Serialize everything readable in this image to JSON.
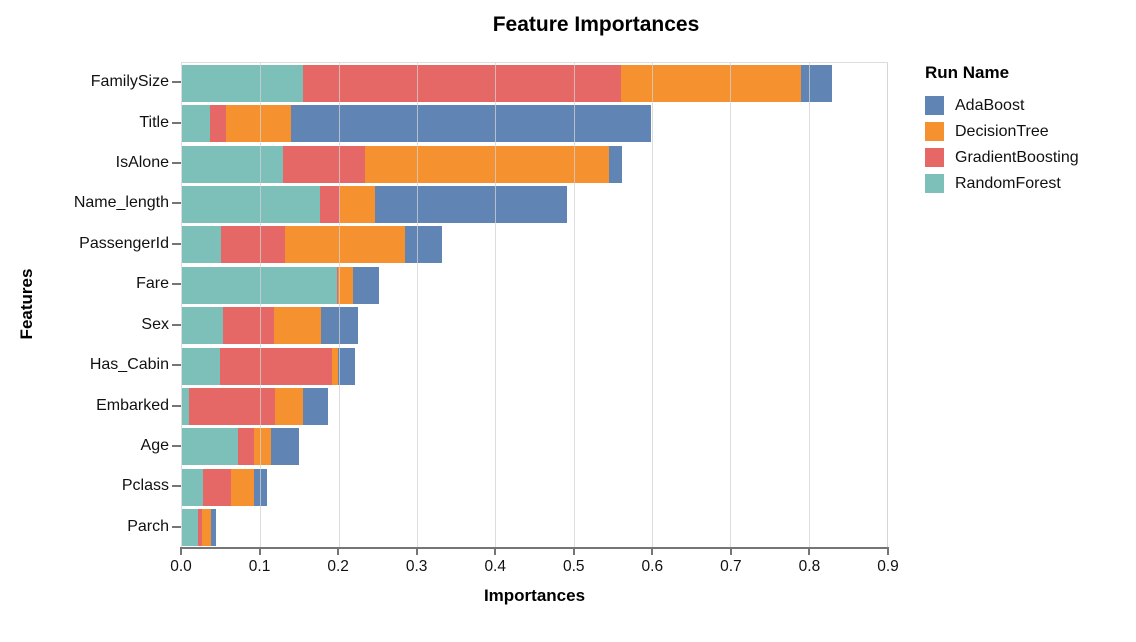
{
  "chart_data": {
    "type": "bar",
    "orientation": "horizontal",
    "stacked": true,
    "title": "Feature Importances",
    "xlabel": "Importances",
    "ylabel": "Features",
    "xlim": [
      0.0,
      0.9
    ],
    "x_ticks": [
      0.0,
      0.1,
      0.2,
      0.3,
      0.4,
      0.5,
      0.6,
      0.7,
      0.8,
      0.9
    ],
    "grid": true,
    "categories": [
      "FamilySize",
      "Title",
      "IsAlone",
      "Name_length",
      "PassengerId",
      "Fare",
      "Sex",
      "Has_Cabin",
      "Embarked",
      "Age",
      "Pclass",
      "Parch"
    ],
    "series": [
      {
        "name": "AdaBoost",
        "color": "#6084b4",
        "values": [
          0.04,
          0.46,
          0.017,
          0.246,
          0.047,
          0.034,
          0.047,
          0.022,
          0.032,
          0.036,
          0.017,
          0.007
        ]
      },
      {
        "name": "DecisionTree",
        "color": "#f5922f",
        "values": [
          0.23,
          0.083,
          0.312,
          0.044,
          0.154,
          0.019,
          0.06,
          0.007,
          0.035,
          0.022,
          0.03,
          0.012
        ]
      },
      {
        "name": "GradientBoosting",
        "color": "#e56766",
        "values": [
          0.405,
          0.02,
          0.104,
          0.026,
          0.081,
          0.001,
          0.066,
          0.144,
          0.11,
          0.02,
          0.035,
          0.004
        ]
      },
      {
        "name": "RandomForest",
        "color": "#7cc0b9",
        "values": [
          0.155,
          0.036,
          0.129,
          0.176,
          0.05,
          0.198,
          0.052,
          0.048,
          0.009,
          0.072,
          0.027,
          0.021
        ]
      }
    ],
    "stack_order": [
      "RandomForest",
      "GradientBoosting",
      "DecisionTree",
      "AdaBoost"
    ],
    "legend": {
      "title": "Run Name",
      "position": "top-right"
    }
  }
}
